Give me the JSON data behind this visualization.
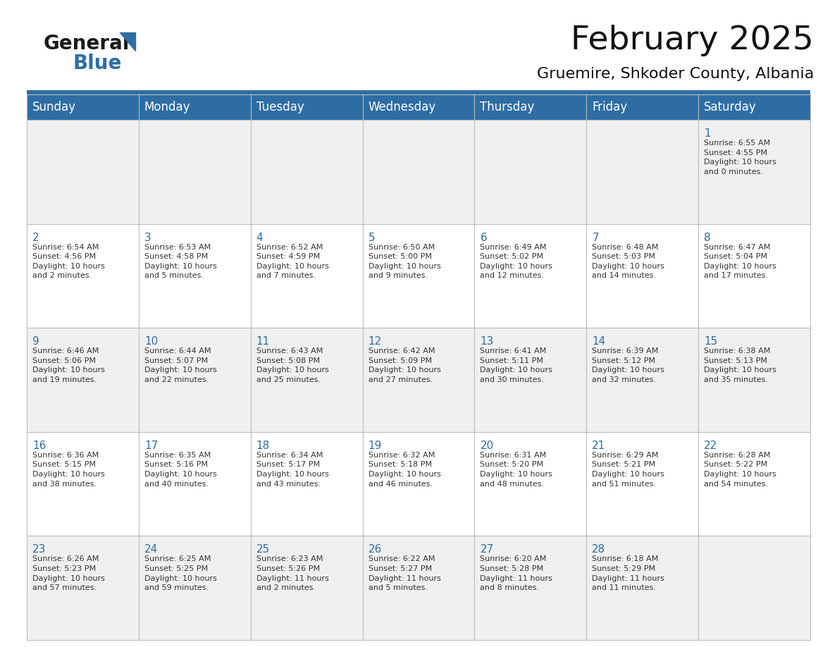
{
  "title": "February 2025",
  "subtitle": "Gruemire, Shkoder County, Albania",
  "header_bg": "#2E6DA4",
  "header_text_color": "#FFFFFF",
  "cell_bg_odd": "#F0F0F0",
  "cell_bg_even": "#FFFFFF",
  "day_number_color": "#2E6DA4",
  "cell_text_color": "#333333",
  "grid_color": "#BBBBBB",
  "days_of_week": [
    "Sunday",
    "Monday",
    "Tuesday",
    "Wednesday",
    "Thursday",
    "Friday",
    "Saturday"
  ],
  "weeks": [
    [
      {
        "day": "",
        "info": ""
      },
      {
        "day": "",
        "info": ""
      },
      {
        "day": "",
        "info": ""
      },
      {
        "day": "",
        "info": ""
      },
      {
        "day": "",
        "info": ""
      },
      {
        "day": "",
        "info": ""
      },
      {
        "day": "1",
        "info": "Sunrise: 6:55 AM\nSunset: 4:55 PM\nDaylight: 10 hours\nand 0 minutes."
      }
    ],
    [
      {
        "day": "2",
        "info": "Sunrise: 6:54 AM\nSunset: 4:56 PM\nDaylight: 10 hours\nand 2 minutes."
      },
      {
        "day": "3",
        "info": "Sunrise: 6:53 AM\nSunset: 4:58 PM\nDaylight: 10 hours\nand 5 minutes."
      },
      {
        "day": "4",
        "info": "Sunrise: 6:52 AM\nSunset: 4:59 PM\nDaylight: 10 hours\nand 7 minutes."
      },
      {
        "day": "5",
        "info": "Sunrise: 6:50 AM\nSunset: 5:00 PM\nDaylight: 10 hours\nand 9 minutes."
      },
      {
        "day": "6",
        "info": "Sunrise: 6:49 AM\nSunset: 5:02 PM\nDaylight: 10 hours\nand 12 minutes."
      },
      {
        "day": "7",
        "info": "Sunrise: 6:48 AM\nSunset: 5:03 PM\nDaylight: 10 hours\nand 14 minutes."
      },
      {
        "day": "8",
        "info": "Sunrise: 6:47 AM\nSunset: 5:04 PM\nDaylight: 10 hours\nand 17 minutes."
      }
    ],
    [
      {
        "day": "9",
        "info": "Sunrise: 6:46 AM\nSunset: 5:06 PM\nDaylight: 10 hours\nand 19 minutes."
      },
      {
        "day": "10",
        "info": "Sunrise: 6:44 AM\nSunset: 5:07 PM\nDaylight: 10 hours\nand 22 minutes."
      },
      {
        "day": "11",
        "info": "Sunrise: 6:43 AM\nSunset: 5:08 PM\nDaylight: 10 hours\nand 25 minutes."
      },
      {
        "day": "12",
        "info": "Sunrise: 6:42 AM\nSunset: 5:09 PM\nDaylight: 10 hours\nand 27 minutes."
      },
      {
        "day": "13",
        "info": "Sunrise: 6:41 AM\nSunset: 5:11 PM\nDaylight: 10 hours\nand 30 minutes."
      },
      {
        "day": "14",
        "info": "Sunrise: 6:39 AM\nSunset: 5:12 PM\nDaylight: 10 hours\nand 32 minutes."
      },
      {
        "day": "15",
        "info": "Sunrise: 6:38 AM\nSunset: 5:13 PM\nDaylight: 10 hours\nand 35 minutes."
      }
    ],
    [
      {
        "day": "16",
        "info": "Sunrise: 6:36 AM\nSunset: 5:15 PM\nDaylight: 10 hours\nand 38 minutes."
      },
      {
        "day": "17",
        "info": "Sunrise: 6:35 AM\nSunset: 5:16 PM\nDaylight: 10 hours\nand 40 minutes."
      },
      {
        "day": "18",
        "info": "Sunrise: 6:34 AM\nSunset: 5:17 PM\nDaylight: 10 hours\nand 43 minutes."
      },
      {
        "day": "19",
        "info": "Sunrise: 6:32 AM\nSunset: 5:18 PM\nDaylight: 10 hours\nand 46 minutes."
      },
      {
        "day": "20",
        "info": "Sunrise: 6:31 AM\nSunset: 5:20 PM\nDaylight: 10 hours\nand 48 minutes."
      },
      {
        "day": "21",
        "info": "Sunrise: 6:29 AM\nSunset: 5:21 PM\nDaylight: 10 hours\nand 51 minutes."
      },
      {
        "day": "22",
        "info": "Sunrise: 6:28 AM\nSunset: 5:22 PM\nDaylight: 10 hours\nand 54 minutes."
      }
    ],
    [
      {
        "day": "23",
        "info": "Sunrise: 6:26 AM\nSunset: 5:23 PM\nDaylight: 10 hours\nand 57 minutes."
      },
      {
        "day": "24",
        "info": "Sunrise: 6:25 AM\nSunset: 5:25 PM\nDaylight: 10 hours\nand 59 minutes."
      },
      {
        "day": "25",
        "info": "Sunrise: 6:23 AM\nSunset: 5:26 PM\nDaylight: 11 hours\nand 2 minutes."
      },
      {
        "day": "26",
        "info": "Sunrise: 6:22 AM\nSunset: 5:27 PM\nDaylight: 11 hours\nand 5 minutes."
      },
      {
        "day": "27",
        "info": "Sunrise: 6:20 AM\nSunset: 5:28 PM\nDaylight: 11 hours\nand 8 minutes."
      },
      {
        "day": "28",
        "info": "Sunrise: 6:18 AM\nSunset: 5:29 PM\nDaylight: 11 hours\nand 11 minutes."
      },
      {
        "day": "",
        "info": ""
      }
    ]
  ],
  "logo_general_color": "#1a1a1a",
  "logo_blue_color": "#2E6DA4",
  "title_fontsize": 34,
  "subtitle_fontsize": 16,
  "header_fontsize": 12,
  "day_number_fontsize": 11,
  "cell_text_fontsize": 8
}
